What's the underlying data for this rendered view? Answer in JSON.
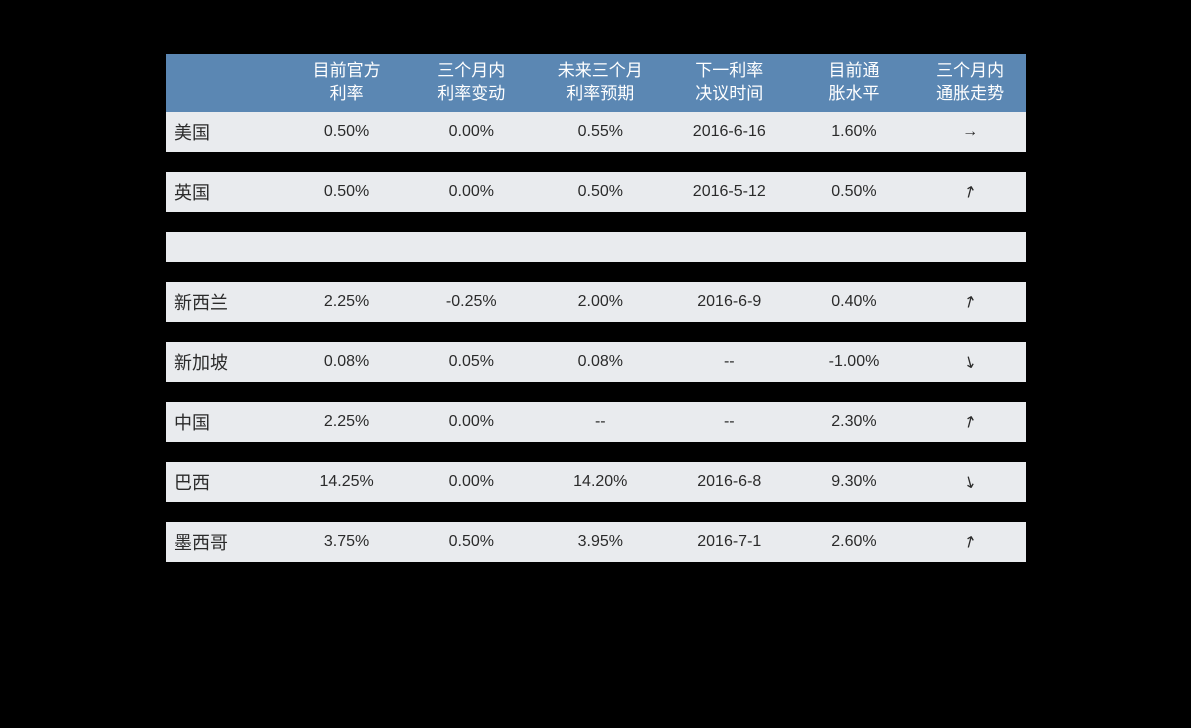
{
  "columns": [
    {
      "line1": "",
      "line2": ""
    },
    {
      "line1": "目前官方",
      "line2": "利率"
    },
    {
      "line1": "三个月内",
      "line2": "利率变动"
    },
    {
      "line1": "未来三个月",
      "line2": "利率预期"
    },
    {
      "line1": "下一利率",
      "line2": "决议时间"
    },
    {
      "line1": "目前通",
      "line2": "胀水平"
    },
    {
      "line1": "三个月内",
      "line2": "通胀走势"
    }
  ],
  "rows": [
    {
      "type": "data",
      "country": "美国",
      "rate": "0.50%",
      "change3m": "0.00%",
      "forecast": "0.55%",
      "nextDecision": "2016-6-16",
      "inflation": "1.60%",
      "trend": "flat"
    },
    {
      "type": "gap"
    },
    {
      "type": "data",
      "country": "英国",
      "rate": "0.50%",
      "change3m": "0.00%",
      "forecast": "0.50%",
      "nextDecision": "2016-5-12",
      "inflation": "0.50%",
      "trend": "up"
    },
    {
      "type": "gap"
    },
    {
      "type": "empty"
    },
    {
      "type": "gap"
    },
    {
      "type": "data",
      "country": "新西兰",
      "rate": "2.25%",
      "change3m": "-0.25%",
      "forecast": "2.00%",
      "nextDecision": "2016-6-9",
      "inflation": "0.40%",
      "trend": "up"
    },
    {
      "type": "gap"
    },
    {
      "type": "data",
      "country": "新加坡",
      "rate": "0.08%",
      "change3m": "0.05%",
      "forecast": "0.08%",
      "nextDecision": "--",
      "inflation": "-1.00%",
      "trend": "down"
    },
    {
      "type": "gap"
    },
    {
      "type": "data",
      "country": "中国",
      "rate": "2.25%",
      "change3m": "0.00%",
      "forecast": "--",
      "nextDecision": "--",
      "inflation": "2.30%",
      "trend": "up"
    },
    {
      "type": "gap"
    },
    {
      "type": "data",
      "country": "巴西",
      "rate": "14.25%",
      "change3m": "0.00%",
      "forecast": "14.20%",
      "nextDecision": "2016-6-8",
      "inflation": "9.30%",
      "trend": "down"
    },
    {
      "type": "gap"
    },
    {
      "type": "data",
      "country": "墨西哥",
      "rate": "3.75%",
      "change3m": "0.50%",
      "forecast": "3.95%",
      "nextDecision": "2016-7-1",
      "inflation": "2.60%",
      "trend": "up"
    }
  ],
  "colors": {
    "headerBg": "#5b87b3",
    "rowBg": "#e9ebee",
    "pageBg": "#000000",
    "headerText": "#ffffff",
    "cellText": "#2b2b2b"
  },
  "trendGlyphs": {
    "flat": "→",
    "up": "↗",
    "down": "↘"
  }
}
